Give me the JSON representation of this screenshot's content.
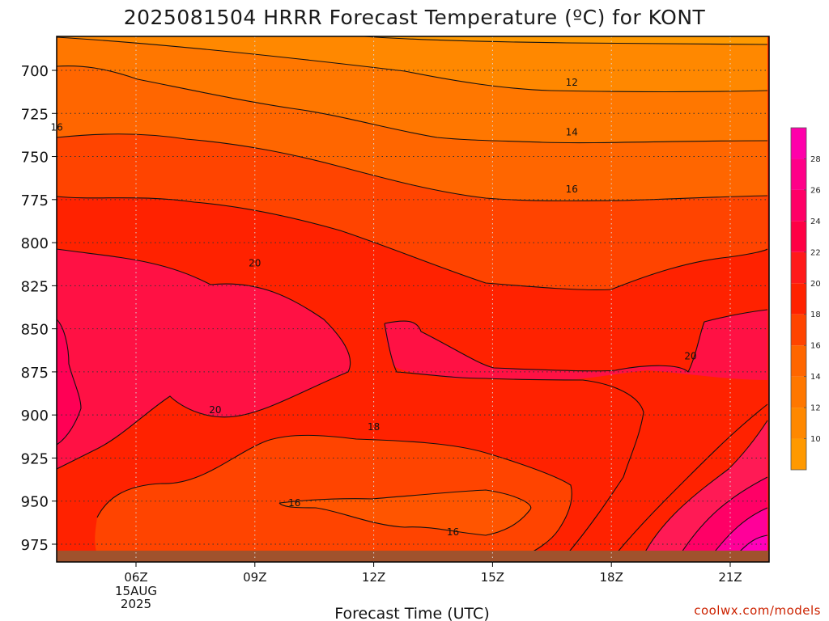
{
  "chart_data": {
    "type": "heatmap",
    "title": "2025081504 HRRR Forecast Temperature (ºC) for KONT",
    "xlabel": "Forecast Time (UTC)",
    "ylabel": "",
    "x_ticks": [
      "06Z",
      "09Z",
      "12Z",
      "15Z",
      "18Z",
      "21Z"
    ],
    "x_date_lines": [
      "15AUG",
      "2025"
    ],
    "y_ticks": [
      700,
      725,
      750,
      775,
      800,
      825,
      850,
      875,
      900,
      925,
      950,
      975
    ],
    "y_range_hPa": [
      682,
      986
    ],
    "colorbar": {
      "labels": [
        10,
        12,
        14,
        16,
        18,
        20,
        22,
        24,
        26,
        28
      ],
      "levels": [
        8,
        10,
        12,
        14,
        16,
        18,
        20,
        22,
        24,
        26,
        28,
        30
      ],
      "colors": [
        "#ff9900",
        "#ff8800",
        "#ff7700",
        "#ff6600",
        "#ff4400",
        "#ff2200",
        "#ff1a1a",
        "#ff0044",
        "#ff0066",
        "#ff0088",
        "#ff00aa"
      ]
    },
    "contour_labels": [
      {
        "value": "16",
        "time": "04Z",
        "p": 733
      },
      {
        "value": "12",
        "time": "17Z",
        "p": 707
      },
      {
        "value": "14",
        "time": "17Z",
        "p": 736
      },
      {
        "value": "16",
        "time": "17Z",
        "p": 769
      },
      {
        "value": "20",
        "time": "09Z",
        "p": 812
      },
      {
        "value": "20",
        "time": "20Z",
        "p": 866
      },
      {
        "value": "20",
        "time": "08Z",
        "p": 897
      },
      {
        "value": "18",
        "time": "12Z",
        "p": 907
      },
      {
        "value": "16",
        "time": "10Z",
        "p": 951
      },
      {
        "value": "16",
        "time": "14Z",
        "p": 968
      }
    ],
    "grid": true
  },
  "credit": "coolwx.com/models"
}
